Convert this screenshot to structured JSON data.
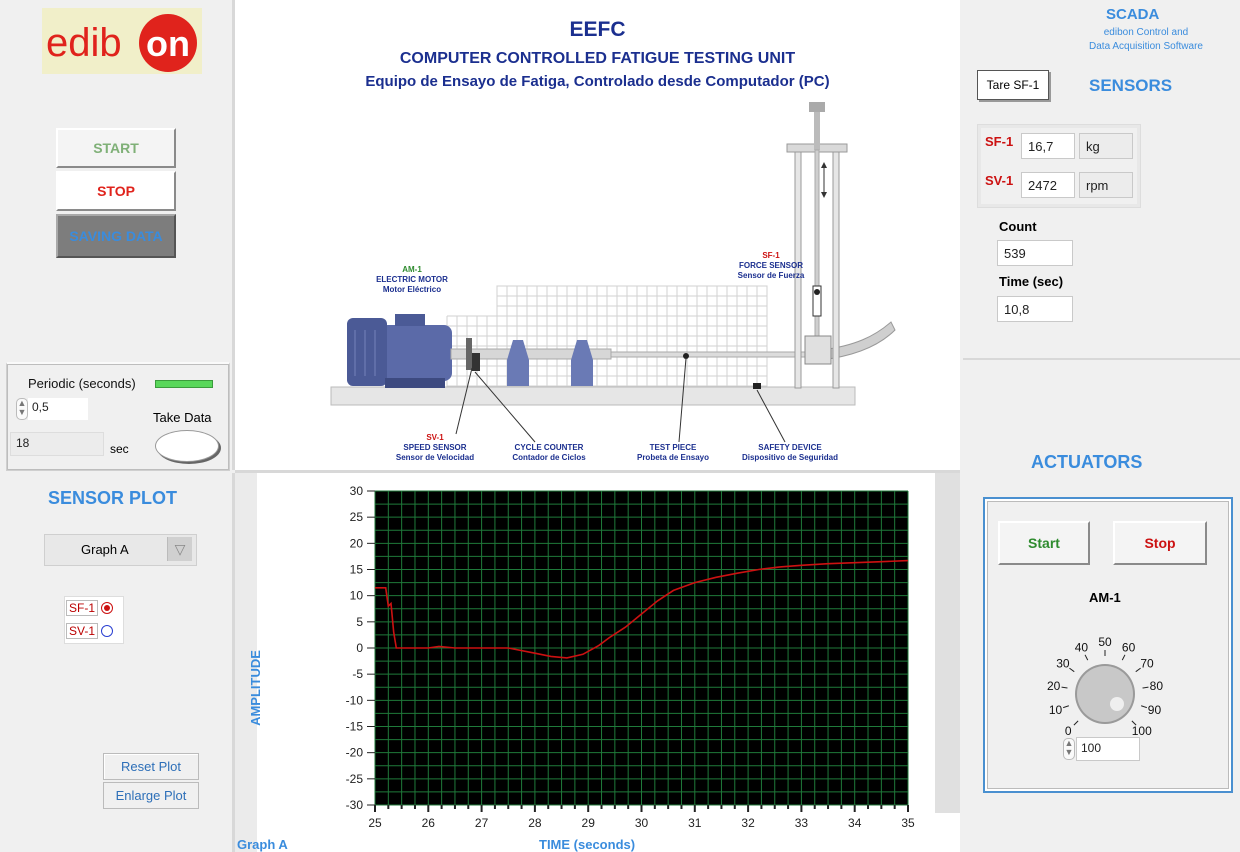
{
  "logo": {
    "text_left": "edib",
    "text_right": "on"
  },
  "controls": {
    "start": "START",
    "stop": "STOP",
    "saving": "SAVING DATA"
  },
  "periodic": {
    "label": "Periodic (seconds)",
    "value": "0,5",
    "take_data": "Take Data",
    "elapsed": "18",
    "unit": "sec"
  },
  "sensor_plot": {
    "title": "SENSOR PLOT",
    "graph_select": "Graph A",
    "options": [
      {
        "label": "SF-1",
        "selected": true
      },
      {
        "label": "SV-1",
        "selected": false
      }
    ],
    "reset": "Reset Plot",
    "enlarge": "Enlarge Plot"
  },
  "header": {
    "title": "EEFC",
    "subtitle": "COMPUTER CONTROLLED FATIGUE TESTING UNIT",
    "subtitle_es": "Equipo de Ensayo de Fatiga, Controlado desde Computador (PC)"
  },
  "diagram": {
    "am1": {
      "code": "AM-1",
      "name": "ELECTRIC MOTOR",
      "name_es": "Motor Eléctrico"
    },
    "sf1": {
      "code": "SF-1",
      "name": "FORCE SENSOR",
      "name_es": "Sensor de Fuerza"
    },
    "sv1": {
      "code": "SV-1",
      "name": "SPEED SENSOR",
      "name_es": "Sensor de Velocidad"
    },
    "counter": {
      "name": "CYCLE COUNTER",
      "name_es": "Contador de Ciclos"
    },
    "test_piece": {
      "name": "TEST PIECE",
      "name_es": "Probeta de Ensayo"
    },
    "safety": {
      "name": "SAFETY DEVICE",
      "name_es": "Dispositivo de Seguridad"
    }
  },
  "scada": {
    "title": "SCADA",
    "line1": "edibon Control and",
    "line2": "Data Acquisition Software"
  },
  "sensors": {
    "title": "SENSORS",
    "tare": "Tare SF-1",
    "sf1": {
      "label": "SF-1",
      "value": "16,7",
      "unit": "kg"
    },
    "sv1": {
      "label": "SV-1",
      "value": "2472",
      "unit": "rpm"
    },
    "count_label": "Count",
    "count": "539",
    "time_label": "Time (sec)",
    "time": "10,8"
  },
  "actuators": {
    "title": "ACTUATORS",
    "start": "Start",
    "stop": "Stop",
    "knob_label": "AM-1",
    "knob_value": "100",
    "knob_scale": [
      "0",
      "10",
      "20",
      "30",
      "40",
      "50",
      "60",
      "70",
      "80",
      "90",
      "100"
    ]
  },
  "chart_data": {
    "type": "line",
    "xlabel": "TIME (seconds)",
    "ylabel": "AMPLITUDE",
    "legend_label": "Graph A",
    "xlim": [
      25,
      35
    ],
    "ylim": [
      -30,
      30
    ],
    "x_ticks": [
      25,
      26,
      27,
      28,
      29,
      30,
      31,
      32,
      33,
      34,
      35
    ],
    "y_ticks": [
      30,
      25,
      20,
      15,
      10,
      5,
      0,
      -5,
      -10,
      -15,
      -20,
      -25,
      -30
    ],
    "grid": true,
    "line_color": "#cc1111",
    "series": [
      {
        "x": [
          25.0,
          25.2,
          25.25,
          25.3,
          25.35,
          25.4,
          26.0,
          26.2,
          26.5,
          27.0,
          27.5,
          28.0,
          28.3,
          28.6,
          28.9,
          29.2,
          29.4,
          29.7,
          30.0,
          30.3,
          30.6,
          31.0,
          31.4,
          31.8,
          32.2,
          32.6,
          33.0,
          33.5,
          34.0,
          34.5,
          35.0
        ],
        "y": [
          11.5,
          11.5,
          8.0,
          8.5,
          3.0,
          0.0,
          0.0,
          0.3,
          0.0,
          0.0,
          0.0,
          -1.0,
          -1.6,
          -1.9,
          -1.2,
          0.5,
          2.0,
          4.0,
          6.5,
          9.0,
          11.0,
          12.5,
          13.5,
          14.3,
          15.0,
          15.5,
          15.8,
          16.1,
          16.3,
          16.5,
          16.7
        ]
      }
    ]
  }
}
